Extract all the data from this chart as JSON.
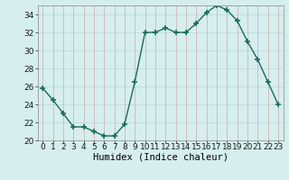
{
  "x": [
    0,
    1,
    2,
    3,
    4,
    5,
    6,
    7,
    8,
    9,
    10,
    11,
    12,
    13,
    14,
    15,
    16,
    17,
    18,
    19,
    20,
    21,
    22,
    23
  ],
  "y": [
    25.8,
    24.5,
    23.0,
    21.5,
    21.5,
    21.0,
    20.5,
    20.5,
    21.8,
    26.5,
    32.0,
    32.0,
    32.5,
    32.0,
    32.0,
    33.0,
    34.2,
    35.0,
    34.5,
    33.3,
    31.0,
    29.0,
    26.5,
    24.0
  ],
  "line_color": "#1a6b5a",
  "marker": "+",
  "marker_size": 4,
  "marker_lw": 1.2,
  "line_width": 1.0,
  "bg_color": "#d6eeee",
  "grid_color": "#b8d8d8",
  "grid_color2": "#ccaaaa",
  "xlabel": "Humidex (Indice chaleur)",
  "ylim": [
    20,
    35
  ],
  "xlim": [
    -0.5,
    23.5
  ],
  "yticks": [
    20,
    22,
    24,
    26,
    28,
    30,
    32,
    34
  ],
  "xticks": [
    0,
    1,
    2,
    3,
    4,
    5,
    6,
    7,
    8,
    9,
    10,
    11,
    12,
    13,
    14,
    15,
    16,
    17,
    18,
    19,
    20,
    21,
    22,
    23
  ],
  "xlabel_fontsize": 7.5,
  "tick_fontsize": 6.5
}
